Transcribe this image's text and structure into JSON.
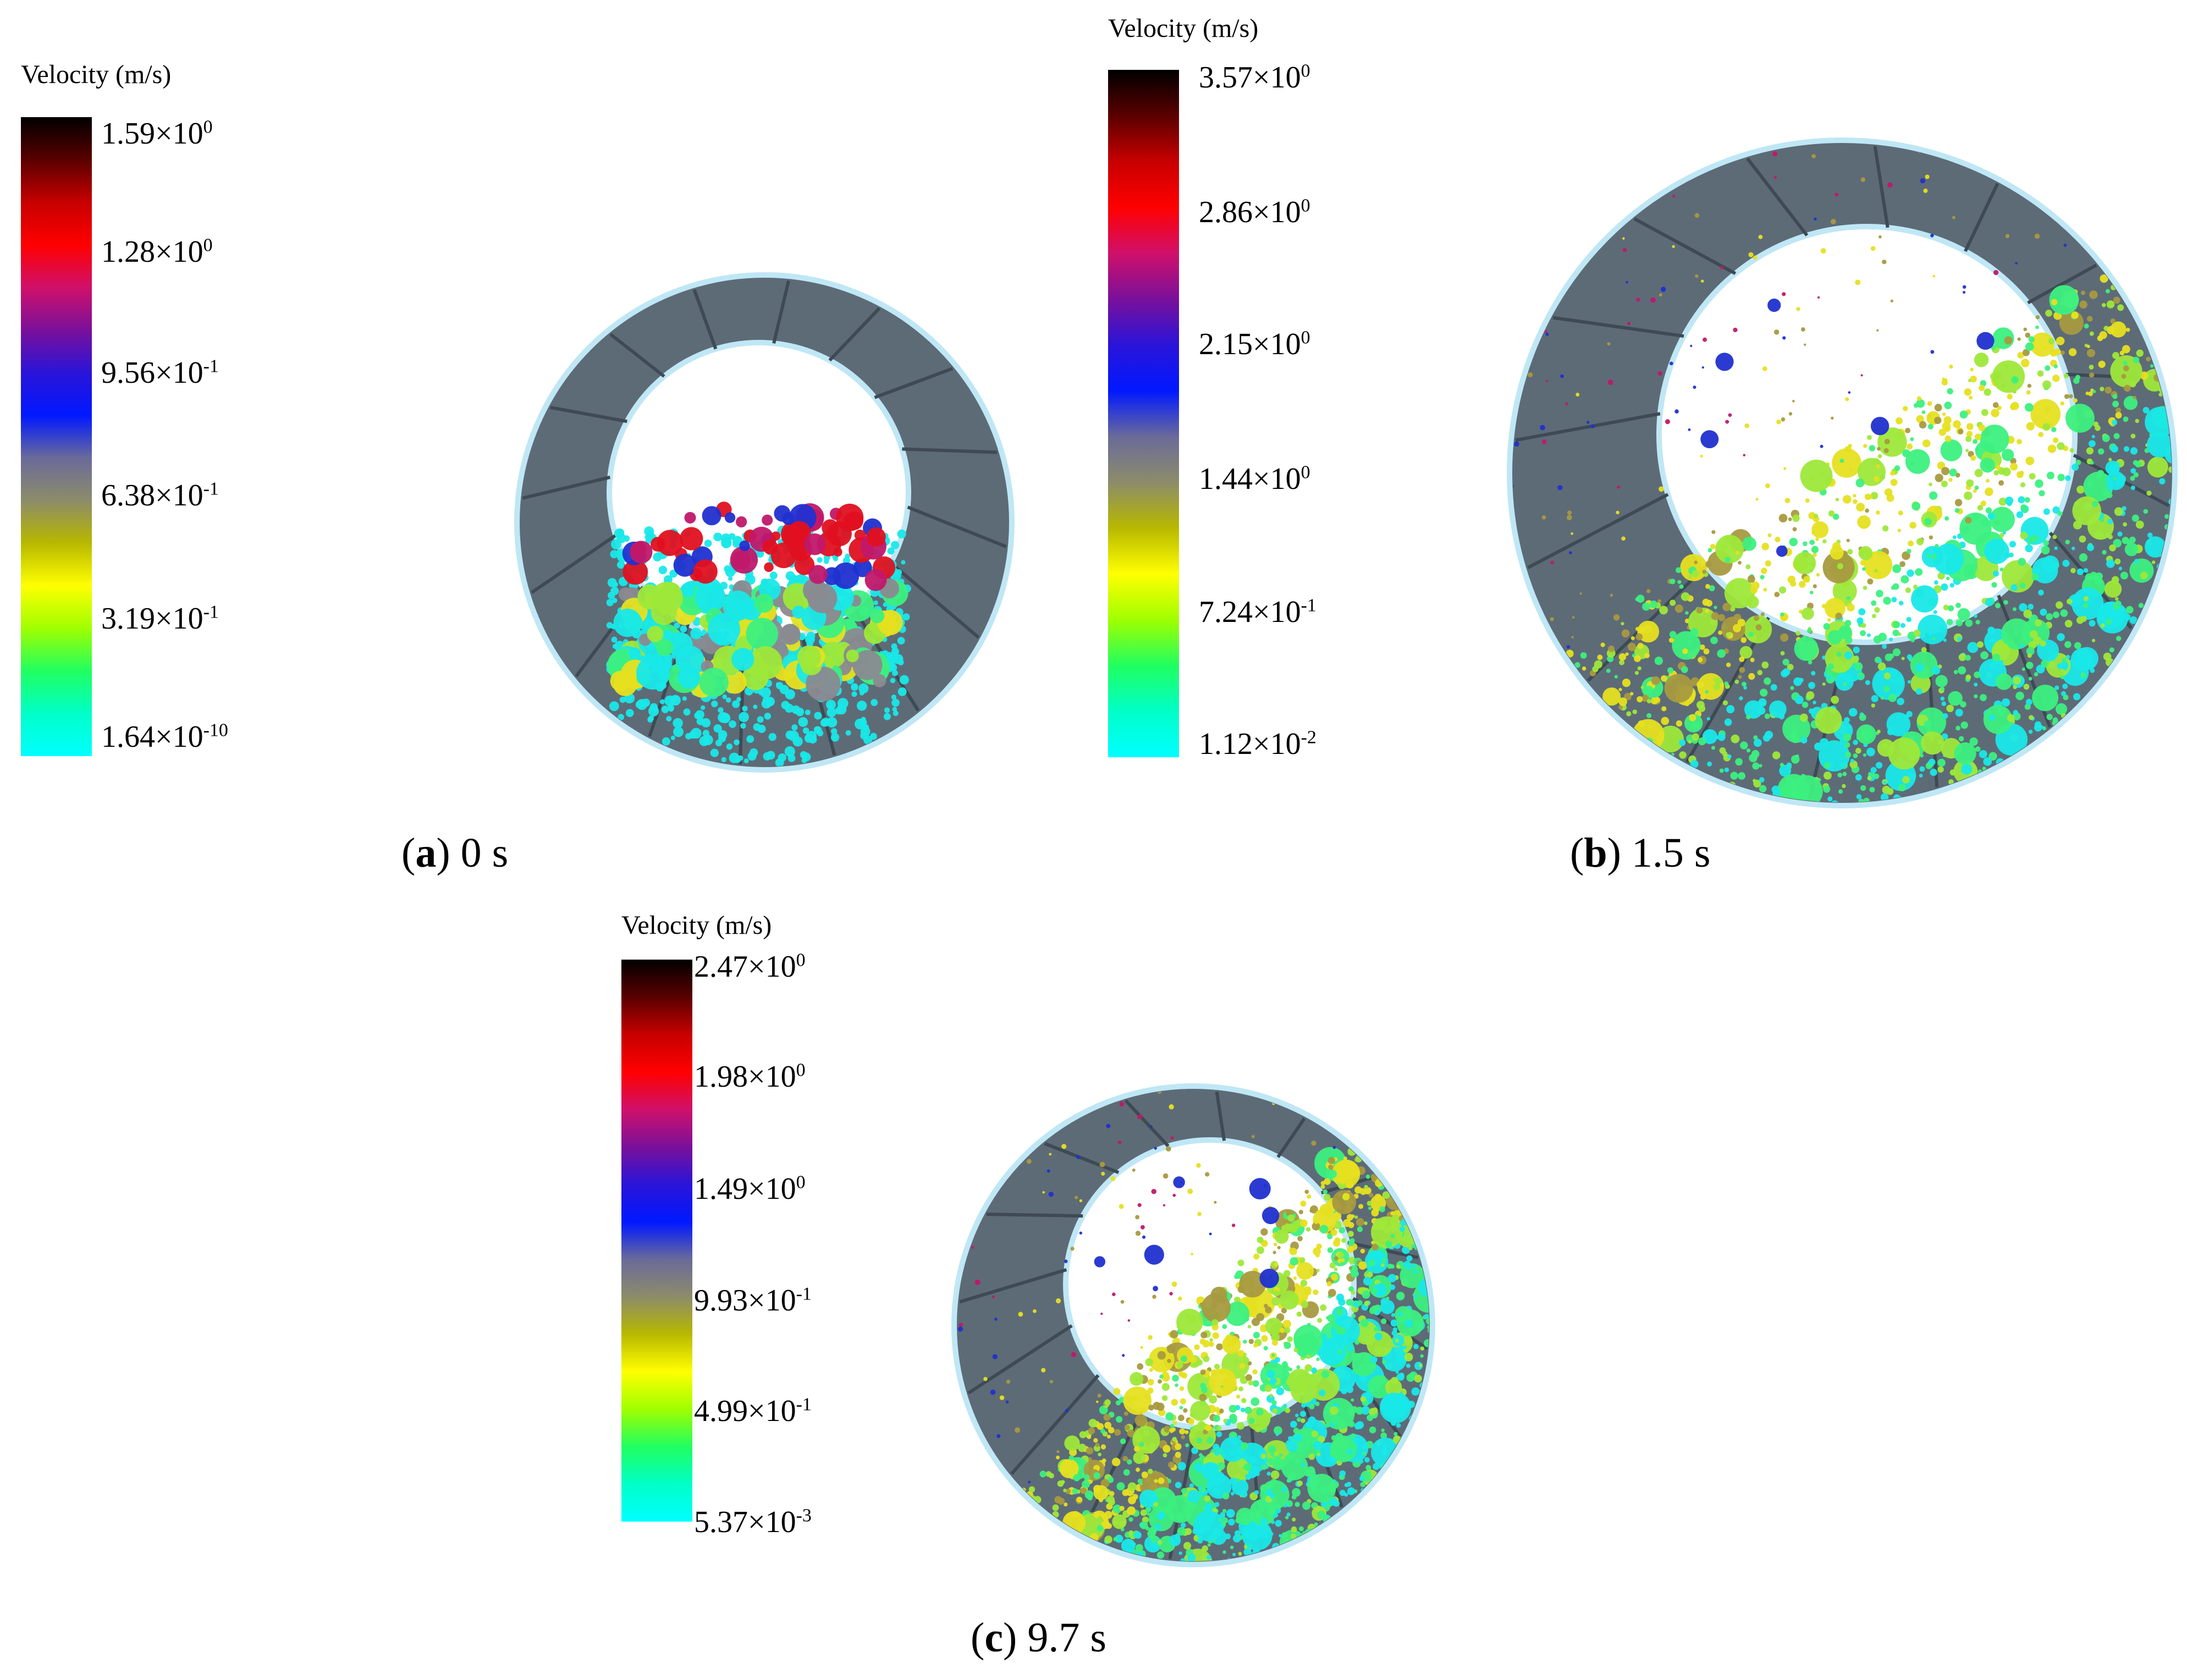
{
  "figure": {
    "panels": [
      {
        "id": "a",
        "caption_letter": "a",
        "caption_time": "0 s",
        "legend_title": "Velocity (m/s)",
        "ticks": [
          {
            "mant": "1.59",
            "exp": "0"
          },
          {
            "mant": "1.28",
            "exp": "0"
          },
          {
            "mant": "9.56",
            "exp": "-1"
          },
          {
            "mant": "6.38",
            "exp": "-1"
          },
          {
            "mant": "3.19",
            "exp": "-1"
          },
          {
            "mant": "1.64",
            "exp": "-10"
          }
        ]
      },
      {
        "id": "b",
        "caption_letter": "b",
        "caption_time": "1.5 s",
        "legend_title": "Velocity (m/s)",
        "ticks": [
          {
            "mant": "3.57",
            "exp": "0"
          },
          {
            "mant": "2.86",
            "exp": "0"
          },
          {
            "mant": "2.15",
            "exp": "0"
          },
          {
            "mant": "1.44",
            "exp": "0"
          },
          {
            "mant": "7.24",
            "exp": "-1"
          },
          {
            "mant": "1.12",
            "exp": "-2"
          }
        ]
      },
      {
        "id": "c",
        "caption_letter": "c",
        "caption_time": "9.7 s",
        "legend_title": "Velocity (m/s)",
        "ticks": [
          {
            "mant": "2.47",
            "exp": "0"
          },
          {
            "mant": "1.98",
            "exp": "0"
          },
          {
            "mant": "1.49",
            "exp": "0"
          },
          {
            "mant": "9.93",
            "exp": "-1"
          },
          {
            "mant": "4.99",
            "exp": "-1"
          },
          {
            "mant": "5.37",
            "exp": "-3"
          }
        ]
      }
    ],
    "times_symbol": "×",
    "base": "10",
    "colors": {
      "scale": [
        "#000000",
        "#5a0000",
        "#c80000",
        "#ff0000",
        "#d0106a",
        "#7a109a",
        "#2a14d8",
        "#0018ff",
        "#6a6a9a",
        "#8c8c6a",
        "#b8b800",
        "#ffff00",
        "#a0ff00",
        "#20ff60",
        "#00ffc8",
        "#00ffff"
      ],
      "mill_liner": "#5d6b77",
      "mill_liner_edge": "#3e4a54",
      "mill_outline": "#bfe7f5"
    }
  }
}
